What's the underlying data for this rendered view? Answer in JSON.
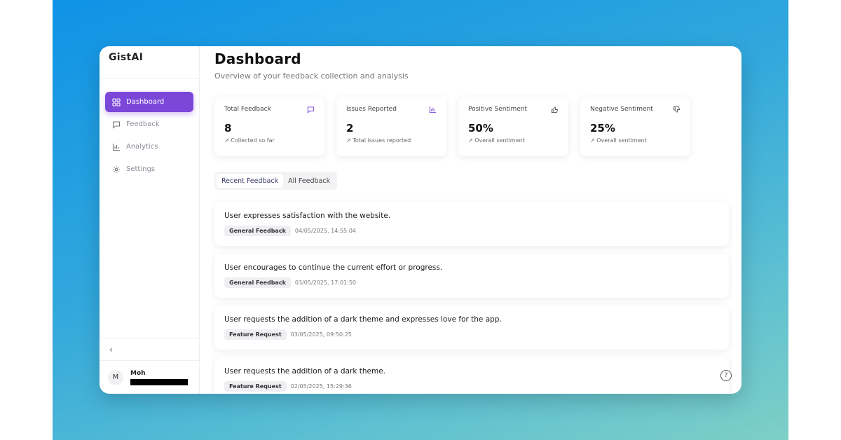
{
  "brand": "GistAI",
  "sidebar": {
    "items": [
      {
        "label": "Dashboard",
        "icon": "grid-icon",
        "active": true
      },
      {
        "label": "Feedback",
        "icon": "message-icon",
        "active": false
      },
      {
        "label": "Analytics",
        "icon": "bar-chart-icon",
        "active": false
      },
      {
        "label": "Settings",
        "icon": "gear-icon",
        "active": false
      }
    ],
    "collapse_glyph": "‹",
    "user": {
      "initial": "M",
      "name": "Moh"
    }
  },
  "header": {
    "title": "Dashboard",
    "subtitle": "Overview of your feedback collection and analysis"
  },
  "stats": [
    {
      "label": "Total Feedback",
      "value": "8",
      "note": "Collected so far",
      "icon": "message-icon"
    },
    {
      "label": "Issues Reported",
      "value": "2",
      "note": "Total issues reported",
      "icon": "bar-chart-icon"
    },
    {
      "label": "Positive Sentiment",
      "value": "50%",
      "note": "Overall sentiment",
      "icon": "thumbs-up-icon"
    },
    {
      "label": "Negative Sentiment",
      "value": "25%",
      "note": "Overall sentiment",
      "icon": "thumbs-down-icon"
    }
  ],
  "tabs": [
    {
      "label": "Recent Feedback",
      "active": true
    },
    {
      "label": "All Feedback",
      "active": false
    }
  ],
  "feedback": [
    {
      "text": "User expresses satisfaction with the website.",
      "category": "General Feedback",
      "date": "04/05/2025, 14:55:04"
    },
    {
      "text": "User encourages to continue the current effort or progress.",
      "category": "General Feedback",
      "date": "03/05/2025, 17:01:50"
    },
    {
      "text": "User requests the addition of a dark theme and expresses love for the app.",
      "category": "Feature Request",
      "date": "03/05/2025, 09:50:25"
    },
    {
      "text": "User requests the addition of a dark theme.",
      "category": "Feature Request",
      "date": "02/05/2025, 15:29:36"
    }
  ],
  "help_glyph": "?",
  "trend_glyph": "↗",
  "colors": {
    "accent": "#7b47d9",
    "background_start": "#0f93e6",
    "background_end": "#7ecfc6"
  }
}
